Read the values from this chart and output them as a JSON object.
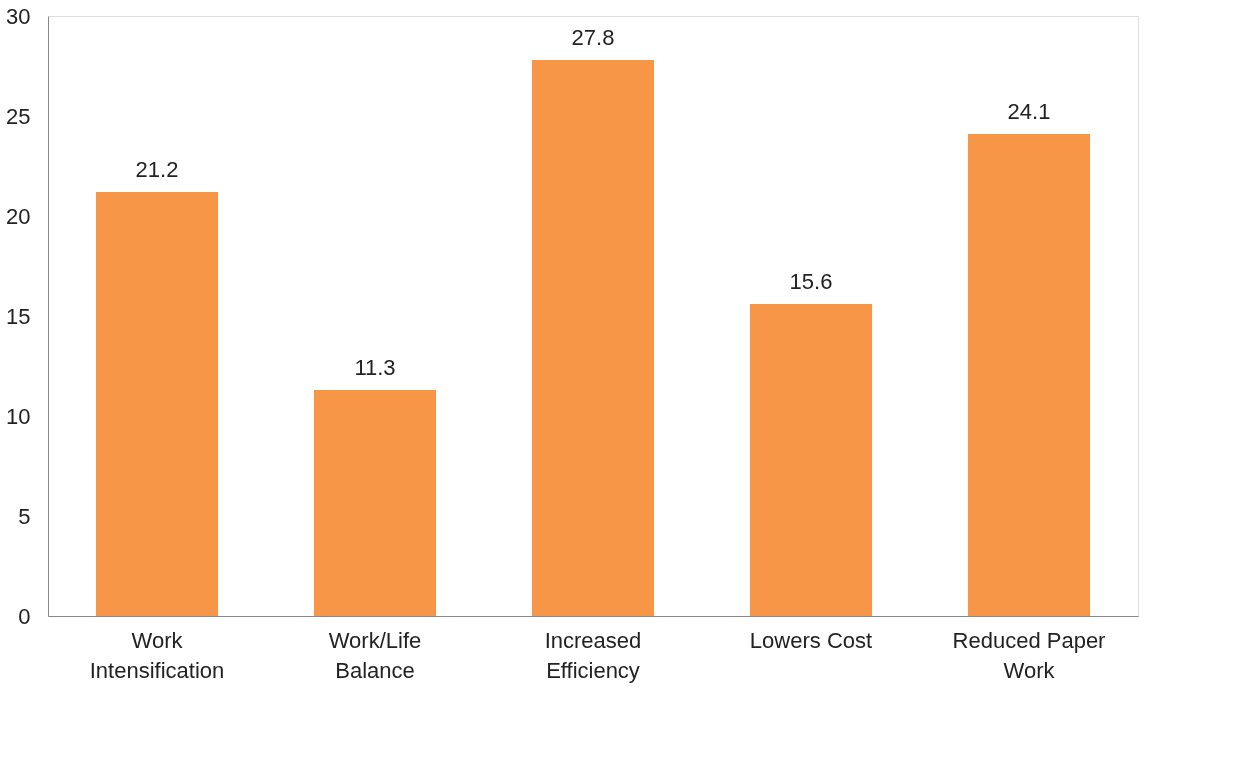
{
  "chart_data": {
    "type": "bar",
    "categories": [
      "Work Intensification",
      "Work/Life Balance",
      "Increased Efficiency",
      "Lowers Cost",
      "Reduced Paper Work"
    ],
    "values": [
      21.2,
      11.3,
      27.8,
      15.6,
      24.1
    ],
    "color": "#f79646",
    "ylim": [
      0,
      30
    ],
    "yticks": [
      0,
      5,
      10,
      15,
      20,
      25,
      30
    ],
    "grid": false,
    "data_labels": true
  }
}
